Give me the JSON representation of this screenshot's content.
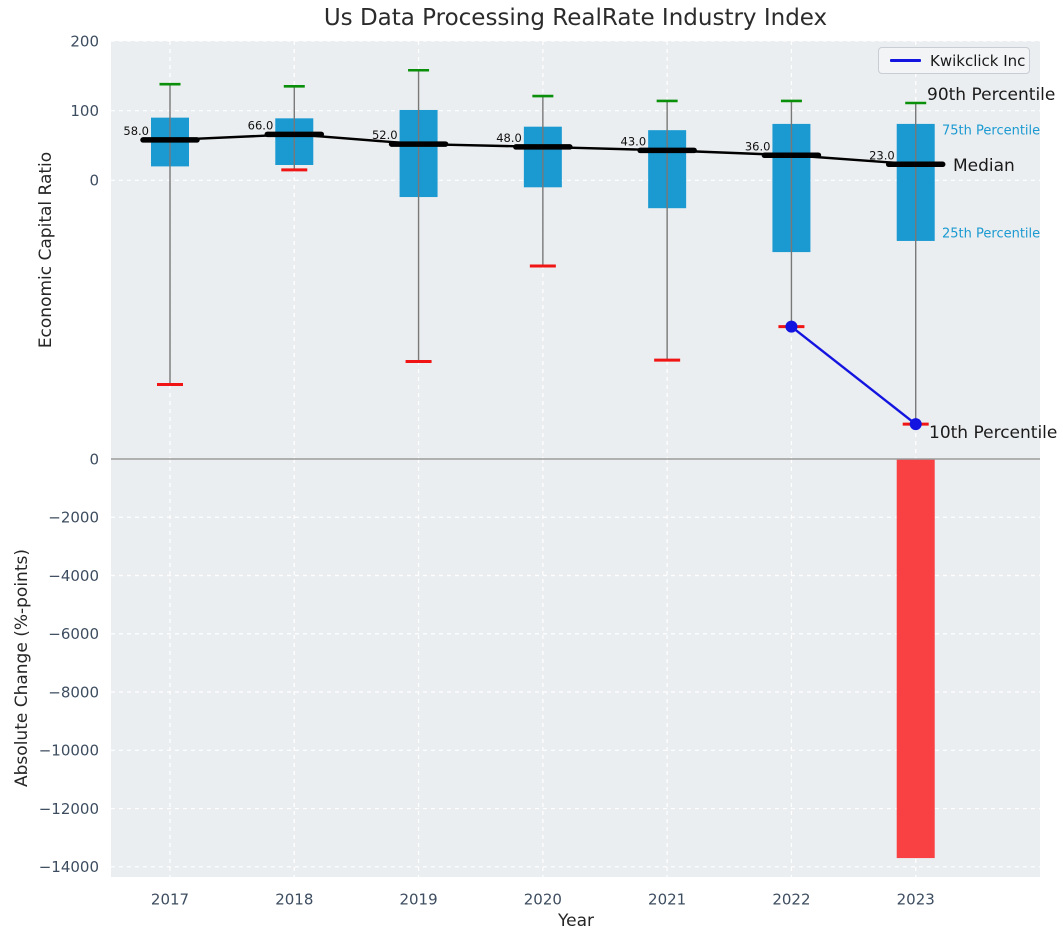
{
  "title": "Us Data Processing RealRate Industry Index",
  "legend": {
    "label": "Kwikclick Inc"
  },
  "annotations": {
    "p90": "90th Percentile",
    "p75": "75th Percentile",
    "median": "Median",
    "p25": "25th Percentile",
    "p10": "10th Percentile"
  },
  "colors": {
    "box": "#1b9ad2",
    "p90_cap": "#0a8f0a",
    "p10_cap": "#f01414",
    "median": "#000000",
    "kwikclick": "#1414e0",
    "bar": "#f94144",
    "whisker": "#787878",
    "zero_line": "#9b9b9b",
    "panel_bg": "#ebeef0",
    "grid": "#ffffff",
    "tick_text": "#3d4d60",
    "text": "#262626"
  },
  "chart_data": [
    {
      "type": "box",
      "title": "Us Data Processing RealRate Industry Index",
      "xlabel": "Year",
      "ylabel": "Economic Capital Ratio",
      "ylim": [
        -400,
        200
      ],
      "yticks": [
        0,
        100,
        200
      ],
      "ytick_labels": [
        "0",
        "100",
        "200"
      ],
      "categories": [
        2017,
        2018,
        2019,
        2020,
        2021,
        2022,
        2023
      ],
      "xtick_labels": [
        "2017",
        "2018",
        "2019",
        "2020",
        "2021",
        "2022",
        "2023"
      ],
      "grid": true,
      "legend_position": "upper right",
      "p90": [
        138,
        135,
        158,
        121,
        114,
        114,
        111
      ],
      "p75": [
        90,
        89,
        101,
        77,
        72,
        81,
        81
      ],
      "median": [
        58,
        66,
        52,
        48,
        43,
        36,
        23
      ],
      "median_labels": [
        "58.0",
        "66.0",
        "52.0",
        "48.0",
        "43.0",
        "36.0",
        "23.0"
      ],
      "p25": [
        20,
        22,
        -24,
        -10,
        -40,
        -103,
        -87
      ],
      "p10": [
        -293,
        15,
        -260,
        -123,
        -258,
        -210,
        -350
      ],
      "series": [
        {
          "name": "Kwikclick Inc",
          "x": [
            2022,
            2023
          ],
          "values": [
            -210,
            -350
          ]
        }
      ]
    },
    {
      "type": "bar",
      "xlabel": "Year",
      "ylabel": "Absolute Change (%-points)",
      "ylim": [
        -14350,
        0
      ],
      "yticks": [
        0,
        -2000,
        -4000,
        -6000,
        -8000,
        -10000,
        -12000,
        -14000
      ],
      "ytick_labels": [
        "0",
        "−2000",
        "−4000",
        "−6000",
        "−8000",
        "−10000",
        "−12000",
        "−14000"
      ],
      "categories": [
        2023
      ],
      "values": [
        -13700
      ],
      "grid": true
    }
  ]
}
